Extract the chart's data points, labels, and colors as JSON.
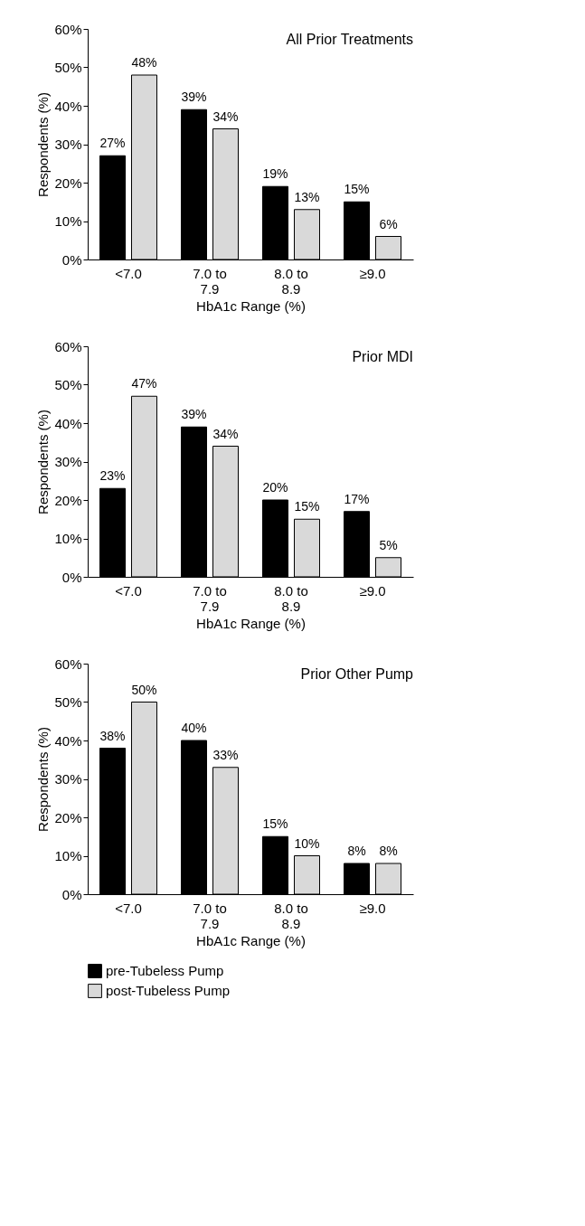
{
  "chart_data": [
    {
      "type": "bar",
      "title": "All Prior Treatments",
      "xlabel": "HbA1c Range (%)",
      "ylabel": "Respondents (%)",
      "categories": [
        "<7.0",
        "7.0 to\n7.9",
        "8.0 to\n8.9",
        "≥9.0"
      ],
      "series": [
        {
          "name": "pre-Tubeless Pump",
          "color": "#000000",
          "values": [
            27,
            39,
            19,
            15
          ],
          "value_labels": [
            "27%",
            "39%",
            "19%",
            "15%"
          ]
        },
        {
          "name": "post-Tubeless Pump",
          "color": "#d9d9d9",
          "values": [
            48,
            34,
            13,
            6
          ],
          "value_labels": [
            "48%",
            "34%",
            "13%",
            "6%"
          ]
        }
      ],
      "ylim": [
        0,
        60
      ],
      "yticks": [
        {
          "value": 0,
          "label": "0%"
        },
        {
          "value": 10,
          "label": "10%"
        },
        {
          "value": 20,
          "label": "20%"
        },
        {
          "value": 30,
          "label": "30%"
        },
        {
          "value": 40,
          "label": "40%"
        },
        {
          "value": 50,
          "label": "50%"
        },
        {
          "value": 60,
          "label": "60%"
        }
      ],
      "grid": false,
      "legend": "bottom"
    },
    {
      "type": "bar",
      "title": "Prior MDI",
      "xlabel": "HbA1c Range (%)",
      "ylabel": "Respondents (%)",
      "categories": [
        "<7.0",
        "7.0 to\n7.9",
        "8.0 to\n8.9",
        "≥9.0"
      ],
      "series": [
        {
          "name": "pre-Tubeless Pump",
          "color": "#000000",
          "values": [
            23,
            39,
            20,
            17
          ],
          "value_labels": [
            "23%",
            "39%",
            "20%",
            "17%"
          ]
        },
        {
          "name": "post-Tubeless Pump",
          "color": "#d9d9d9",
          "values": [
            47,
            34,
            15,
            5
          ],
          "value_labels": [
            "47%",
            "34%",
            "15%",
            "5%"
          ]
        }
      ],
      "ylim": [
        0,
        60
      ],
      "yticks": [
        {
          "value": 0,
          "label": "0%"
        },
        {
          "value": 10,
          "label": "10%"
        },
        {
          "value": 20,
          "label": "20%"
        },
        {
          "value": 30,
          "label": "30%"
        },
        {
          "value": 40,
          "label": "40%"
        },
        {
          "value": 50,
          "label": "50%"
        },
        {
          "value": 60,
          "label": "60%"
        }
      ],
      "grid": false,
      "legend": "bottom"
    },
    {
      "type": "bar",
      "title": "Prior Other Pump",
      "xlabel": "HbA1c Range (%)",
      "ylabel": "Respondents (%)",
      "categories": [
        "<7.0",
        "7.0 to\n7.9",
        "8.0 to\n8.9",
        "≥9.0"
      ],
      "series": [
        {
          "name": "pre-Tubeless Pump",
          "color": "#000000",
          "values": [
            38,
            40,
            15,
            8
          ],
          "value_labels": [
            "38%",
            "40%",
            "15%",
            "8%"
          ]
        },
        {
          "name": "post-Tubeless Pump",
          "color": "#d9d9d9",
          "values": [
            50,
            33,
            10,
            8
          ],
          "value_labels": [
            "50%",
            "33%",
            "10%",
            "8%"
          ]
        }
      ],
      "ylim": [
        0,
        60
      ],
      "yticks": [
        {
          "value": 0,
          "label": "0%"
        },
        {
          "value": 10,
          "label": "10%"
        },
        {
          "value": 20,
          "label": "20%"
        },
        {
          "value": 30,
          "label": "30%"
        },
        {
          "value": 40,
          "label": "40%"
        },
        {
          "value": 50,
          "label": "50%"
        },
        {
          "value": 60,
          "label": "60%"
        }
      ],
      "grid": false,
      "legend": "bottom"
    }
  ]
}
